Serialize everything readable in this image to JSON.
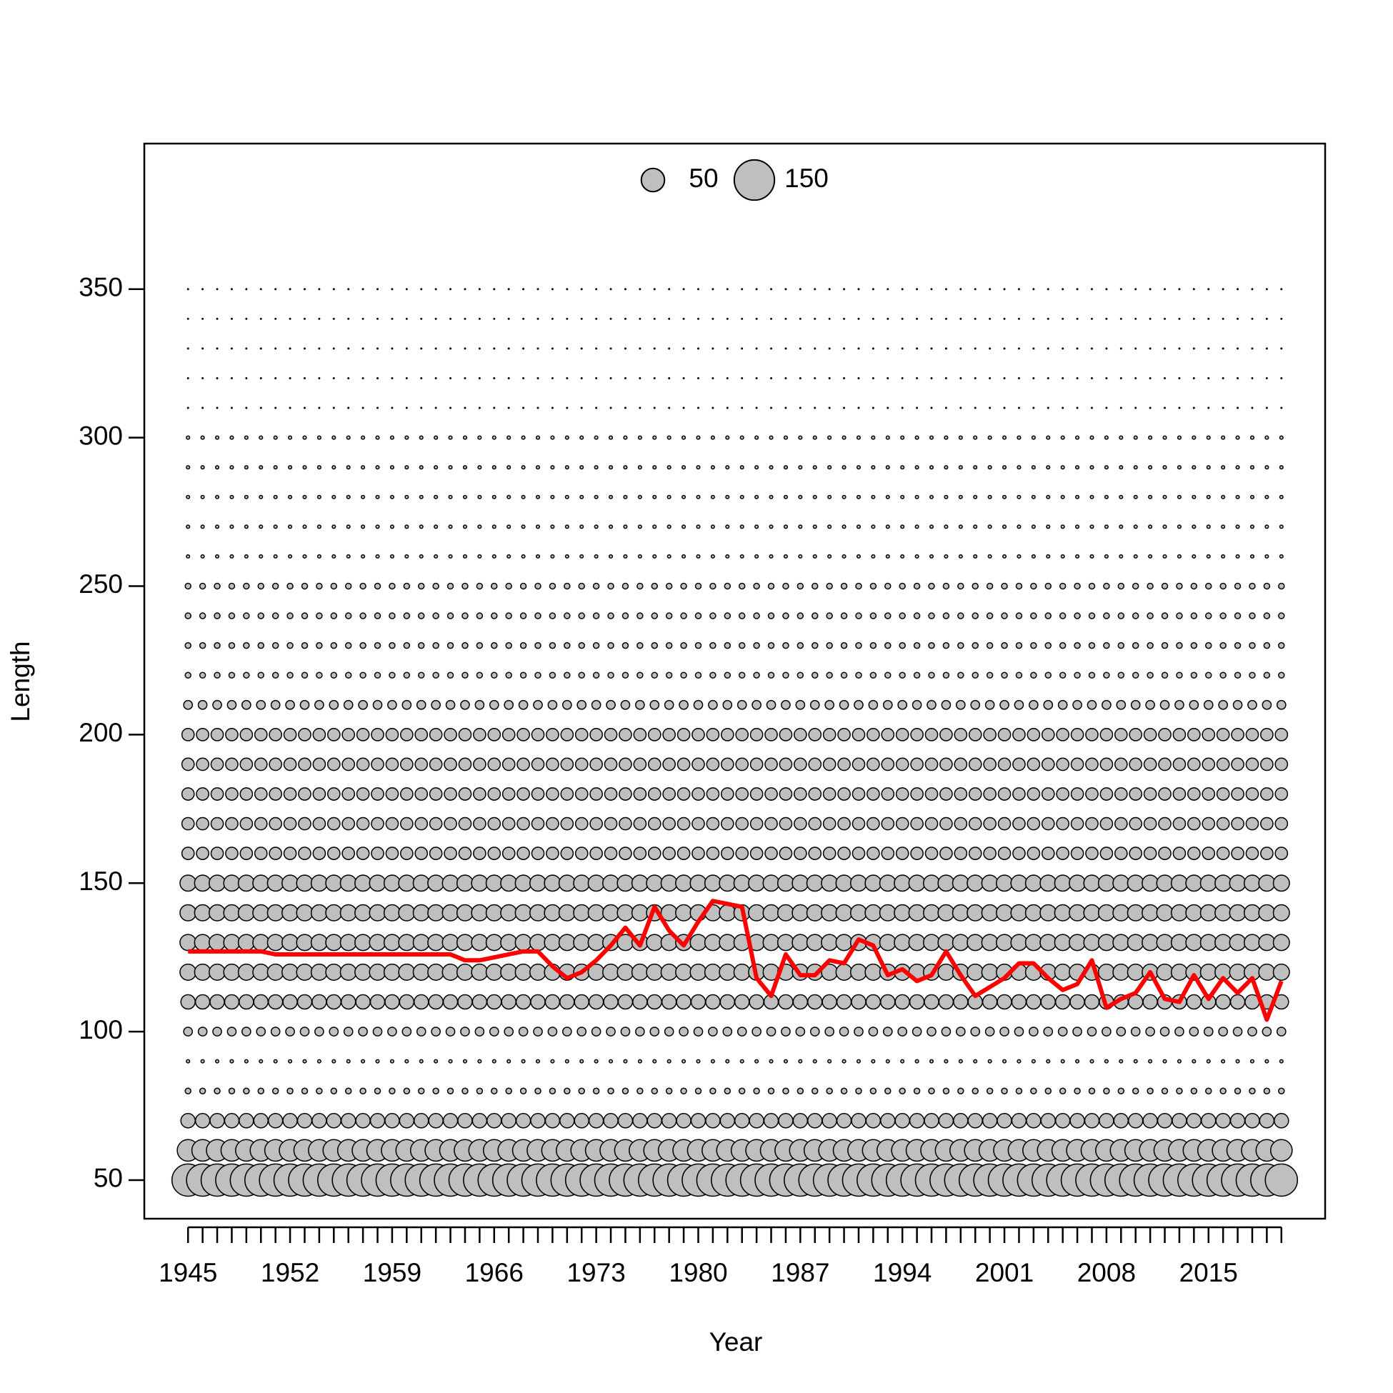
{
  "chart_data": {
    "type": "bubble",
    "x_label": "Year",
    "y_label": "Length",
    "years": [
      1945,
      1946,
      1947,
      1948,
      1949,
      1950,
      1951,
      1952,
      1953,
      1954,
      1955,
      1956,
      1957,
      1958,
      1959,
      1960,
      1961,
      1962,
      1963,
      1964,
      1965,
      1966,
      1967,
      1968,
      1969,
      1970,
      1971,
      1972,
      1973,
      1974,
      1975,
      1976,
      1977,
      1978,
      1979,
      1980,
      1981,
      1982,
      1983,
      1984,
      1985,
      1986,
      1987,
      1988,
      1989,
      1990,
      1991,
      1992,
      1993,
      1994,
      1995,
      1996,
      1997,
      1998,
      1999,
      2000,
      2001,
      2002,
      2003,
      2004,
      2005,
      2006,
      2007,
      2008,
      2009,
      2010,
      2011,
      2012,
      2013,
      2014,
      2015,
      2016,
      2017,
      2018,
      2019,
      2020
    ],
    "bubbles": {
      "color": "#bfbfbf",
      "lengths": [
        50,
        60,
        70,
        80,
        90,
        100,
        110,
        120,
        130,
        140,
        150,
        160,
        170,
        180,
        190,
        200,
        210,
        220,
        230,
        240,
        250,
        260,
        270,
        280,
        290,
        300,
        310,
        320,
        330,
        340,
        350
      ],
      "sizes": [
        96,
        43,
        19,
        3,
        1,
        7,
        19,
        24,
        24,
        24,
        24,
        14,
        14,
        14,
        14,
        14,
        7,
        3,
        3,
        3,
        3,
        1,
        1,
        1,
        1,
        1,
        0.1,
        0.1,
        0.1,
        0.1,
        0.1
      ]
    },
    "series": [
      {
        "color": "#ff0000",
        "values": [
          127,
          127,
          127,
          127,
          127,
          127,
          126,
          126,
          126,
          126,
          126,
          126,
          126,
          126,
          126,
          126,
          126,
          126,
          126,
          124,
          124,
          125,
          126,
          127,
          127,
          122,
          118,
          120,
          124,
          129,
          135,
          129,
          142,
          134,
          129,
          137,
          144,
          143,
          142,
          118,
          112,
          126,
          119,
          119,
          124,
          123,
          131,
          129,
          119,
          121,
          117,
          119,
          127,
          119,
          112,
          115,
          118,
          123,
          123,
          118,
          114,
          116,
          124,
          108,
          111,
          113,
          120,
          111,
          110,
          119,
          111,
          118,
          113,
          118,
          104,
          117
        ]
      }
    ],
    "legend_sizes": [
      50,
      150
    ],
    "xlim": [
      1942,
      2023
    ],
    "xticks": [
      1945,
      1952,
      1959,
      1966,
      1973,
      1980,
      1987,
      1994,
      2001,
      2008,
      2015
    ],
    "ylim": [
      37,
      399
    ],
    "yticks": [
      50,
      100,
      150,
      200,
      250,
      300,
      350
    ]
  }
}
